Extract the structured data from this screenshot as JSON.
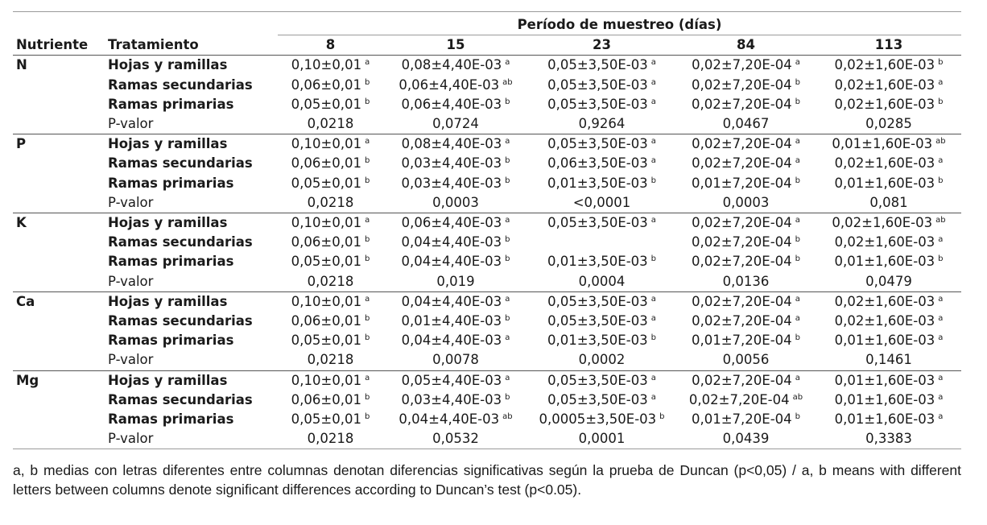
{
  "table": {
    "period_header": "Período de muestreo (días)",
    "col_nutriente": "Nutriente",
    "col_tratamiento": "Tratamiento",
    "days": [
      "8",
      "15",
      "23",
      "84",
      "113"
    ],
    "groups": [
      {
        "nutrient": "N",
        "rows": [
          {
            "treatment": "Hojas y ramillas",
            "cells": [
              {
                "v": "0,10±0,01",
                "s": "a"
              },
              {
                "v": "0,08±4,40E-03",
                "s": "a"
              },
              {
                "v": "0,05±3,50E-03",
                "s": "a"
              },
              {
                "v": "0,02±7,20E-04",
                "s": "a"
              },
              {
                "v": "0,02±1,60E-03",
                "s": "b"
              }
            ]
          },
          {
            "treatment": "Ramas secundarias",
            "cells": [
              {
                "v": "0,06±0,01",
                "s": "b"
              },
              {
                "v": "0,06±4,40E-03",
                "s": "ab"
              },
              {
                "v": "0,05±3,50E-03",
                "s": "a"
              },
              {
                "v": "0,02±7,20E-04",
                "s": "b"
              },
              {
                "v": "0,02±1,60E-03",
                "s": "a"
              }
            ]
          },
          {
            "treatment": "Ramas primarias",
            "cells": [
              {
                "v": "0,05±0,01",
                "s": "b"
              },
              {
                "v": "0,06±4,40E-03",
                "s": "b"
              },
              {
                "v": "0,05±3,50E-03",
                "s": "a"
              },
              {
                "v": "0,02±7,20E-04",
                "s": "b"
              },
              {
                "v": "0,02±1,60E-03",
                "s": "b"
              }
            ]
          }
        ],
        "pvalue_label": "P-valor",
        "pvalues": [
          "0,0218",
          "0,0724",
          "0,9264",
          "0,0467",
          "0,0285"
        ]
      },
      {
        "nutrient": "P",
        "rows": [
          {
            "treatment": "Hojas y ramillas",
            "cells": [
              {
                "v": "0,10±0,01",
                "s": "a"
              },
              {
                "v": "0,08±4,40E-03",
                "s": "a"
              },
              {
                "v": "0,05±3,50E-03",
                "s": "a"
              },
              {
                "v": "0,02±7,20E-04",
                "s": "a"
              },
              {
                "v": "0,01±1,60E-03",
                "s": "ab"
              }
            ]
          },
          {
            "treatment": "Ramas secundarias",
            "cells": [
              {
                "v": "0,06±0,01",
                "s": "b"
              },
              {
                "v": "0,03±4,40E-03",
                "s": "b"
              },
              {
                "v": "0,06±3,50E-03",
                "s": "a"
              },
              {
                "v": "0,02±7,20E-04",
                "s": "a"
              },
              {
                "v": "0,02±1,60E-03",
                "s": "a"
              }
            ]
          },
          {
            "treatment": "Ramas primarias",
            "cells": [
              {
                "v": "0,05±0,01",
                "s": "b"
              },
              {
                "v": "0,03±4,40E-03",
                "s": "b"
              },
              {
                "v": "0,01±3,50E-03",
                "s": "b"
              },
              {
                "v": "0,01±7,20E-04",
                "s": "b"
              },
              {
                "v": "0,01±1,60E-03",
                "s": "b"
              }
            ]
          }
        ],
        "pvalue_label": "P-valor",
        "pvalues": [
          "0,0218",
          "0,0003",
          "<0,0001",
          "0,0003",
          "0,081"
        ]
      },
      {
        "nutrient": "K",
        "rows": [
          {
            "treatment": "Hojas y ramillas",
            "cells": [
              {
                "v": "0,10±0,01",
                "s": "a"
              },
              {
                "v": "0,06±4,40E-03",
                "s": "a"
              },
              {
                "v": "0,05±3,50E-03",
                "s": "a"
              },
              {
                "v": "0,02±7,20E-04",
                "s": "a"
              },
              {
                "v": "0,02±1,60E-03",
                "s": "ab"
              }
            ]
          },
          {
            "treatment": "Ramas secundarias",
            "cells": [
              {
                "v": "0,06±0,01",
                "s": "b"
              },
              {
                "v": "0,04±4,40E-03",
                "s": "b"
              },
              {
                "v": "",
                "s": ""
              },
              {
                "v": "0,02±7,20E-04",
                "s": "b"
              },
              {
                "v": "0,02±1,60E-03",
                "s": "a"
              }
            ]
          },
          {
            "treatment": "Ramas primarias",
            "cells": [
              {
                "v": "0,05±0,01",
                "s": "b"
              },
              {
                "v": "0,04±4,40E-03",
                "s": "b"
              },
              {
                "v": "0,01±3,50E-03",
                "s": "b"
              },
              {
                "v": "0,02±7,20E-04",
                "s": "b"
              },
              {
                "v": "0,01±1,60E-03",
                "s": "b"
              }
            ]
          }
        ],
        "pvalue_label": "P-valor",
        "pvalues": [
          "0,0218",
          "0,019",
          "0,0004",
          "0,0136",
          "0,0479"
        ]
      },
      {
        "nutrient": "Ca",
        "rows": [
          {
            "treatment": "Hojas y ramillas",
            "cells": [
              {
                "v": "0,10±0,01",
                "s": "a"
              },
              {
                "v": "0,04±4,40E-03",
                "s": "a"
              },
              {
                "v": "0,05±3,50E-03",
                "s": "a"
              },
              {
                "v": "0,02±7,20E-04",
                "s": "a"
              },
              {
                "v": "0,02±1,60E-03",
                "s": "a"
              }
            ]
          },
          {
            "treatment": "Ramas secundarias",
            "cells": [
              {
                "v": "0,06±0,01",
                "s": "b"
              },
              {
                "v": "0,01±4,40E-03",
                "s": "b"
              },
              {
                "v": "0,05±3,50E-03",
                "s": "a"
              },
              {
                "v": "0,02±7,20E-04",
                "s": "a"
              },
              {
                "v": "0,02±1,60E-03",
                "s": "a"
              }
            ]
          },
          {
            "treatment": "Ramas primarias",
            "cells": [
              {
                "v": "0,05±0,01",
                "s": "b"
              },
              {
                "v": "0,04±4,40E-03",
                "s": "a"
              },
              {
                "v": "0,01±3,50E-03",
                "s": "b"
              },
              {
                "v": "0,01±7,20E-04",
                "s": "b"
              },
              {
                "v": "0,01±1,60E-03",
                "s": "a"
              }
            ]
          }
        ],
        "pvalue_label": "P-valor",
        "pvalues": [
          "0,0218",
          "0,0078",
          "0,0002",
          "0,0056",
          "0,1461"
        ]
      },
      {
        "nutrient": "Mg",
        "rows": [
          {
            "treatment": "Hojas y ramillas",
            "cells": [
              {
                "v": "0,10±0,01",
                "s": "a"
              },
              {
                "v": "0,05±4,40E-03",
                "s": "a"
              },
              {
                "v": "0,05±3,50E-03",
                "s": "a"
              },
              {
                "v": "0,02±7,20E-04",
                "s": "a"
              },
              {
                "v": "0,01±1,60E-03",
                "s": "a"
              }
            ]
          },
          {
            "treatment": "Ramas secundarias",
            "cells": [
              {
                "v": "0,06±0,01",
                "s": "b"
              },
              {
                "v": "0,03±4,40E-03",
                "s": "b"
              },
              {
                "v": "0,05±3,50E-03",
                "s": "a"
              },
              {
                "v": "0,02±7,20E-04",
                "s": "ab"
              },
              {
                "v": "0,01±1,60E-03",
                "s": "a"
              }
            ]
          },
          {
            "treatment": "Ramas primarias",
            "cells": [
              {
                "v": "0,05±0,01",
                "s": "b"
              },
              {
                "v": "0,04±4,40E-03",
                "s": "ab"
              },
              {
                "v": "0,0005±3,50E-03",
                "s": "b"
              },
              {
                "v": "0,01±7,20E-04",
                "s": "b"
              },
              {
                "v": "0,01±1,60E-03",
                "s": "a"
              }
            ]
          }
        ],
        "pvalue_label": "P-valor",
        "pvalues": [
          "0,0218",
          "0,0532",
          "0,0001",
          "0,0439",
          "0,3383"
        ]
      }
    ]
  },
  "footnote": "a, b medias con letras diferentes entre columnas denotan diferencias significativas según la prueba de Duncan (p<0,05) / a, b means with different letters between columns denote significant differences according to Duncan’s test (p<0.05).",
  "colors": {
    "text": "#1a1a1a",
    "rule_light": "#9a9a9a",
    "rule_dark": "#555555"
  }
}
